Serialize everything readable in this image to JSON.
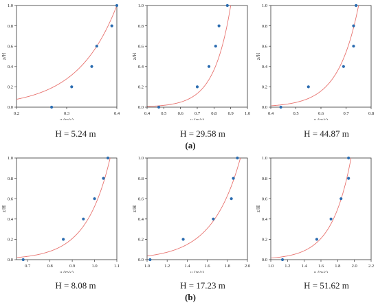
{
  "figure": {
    "row_labels": [
      "(a)",
      "(b)"
    ]
  },
  "chart_data": [
    {
      "type": "scatter",
      "title": "",
      "caption": "H = 5.24 m",
      "xlabel": "u (m/s)",
      "ylabel": "z/H",
      "xlim": [
        0.2,
        0.4
      ],
      "ylim": [
        0,
        1
      ],
      "xticks": [
        "0.2",
        "0.3",
        "0.4"
      ],
      "yticks": [
        "0.0",
        "0.2",
        "0.4",
        "0.6",
        "0.8",
        "1.0"
      ],
      "points": [
        [
          0.27,
          0.0
        ],
        [
          0.31,
          0.2
        ],
        [
          0.35,
          0.4
        ],
        [
          0.36,
          0.6
        ],
        [
          0.39,
          0.8
        ],
        [
          0.4,
          1.0
        ]
      ],
      "fit": {
        "u_ref": 0.4,
        "z0": 0.006
      },
      "colors": {
        "points": "#2b6cb0",
        "fit": "#e8736f"
      }
    },
    {
      "type": "scatter",
      "title": "",
      "caption": "H = 29.58 m",
      "xlabel": "u (m/s)",
      "ylabel": "z/H",
      "xlim": [
        0.4,
        1.0
      ],
      "ylim": [
        0,
        1
      ],
      "xticks": [
        "0.4",
        "0.5",
        "0.6",
        "0.7",
        "0.8",
        "0.9",
        "1.0"
      ],
      "yticks": [
        "0.0",
        "0.2",
        "0.4",
        "0.6",
        "0.8",
        "1.0"
      ],
      "points": [
        [
          0.47,
          0.0
        ],
        [
          0.7,
          0.2
        ],
        [
          0.77,
          0.4
        ],
        [
          0.81,
          0.6
        ],
        [
          0.83,
          0.8
        ],
        [
          0.88,
          1.0
        ]
      ],
      "fit": {
        "u_ref": 0.9,
        "z0": 0.00012
      },
      "colors": {
        "points": "#2b6cb0",
        "fit": "#e8736f"
      }
    },
    {
      "type": "scatter",
      "title": "",
      "caption": "H = 44.87 m",
      "xlabel": "u (m/s)",
      "ylabel": "z/H",
      "xlim": [
        0.4,
        0.8
      ],
      "ylim": [
        0,
        1
      ],
      "xticks": [
        "0.4",
        "0.5",
        "0.6",
        "0.7",
        "0.8"
      ],
      "yticks": [
        "0.0",
        "0.2",
        "0.4",
        "0.6",
        "0.8",
        "1.0"
      ],
      "points": [
        [
          0.44,
          0.0
        ],
        [
          0.55,
          0.2
        ],
        [
          0.69,
          0.4
        ],
        [
          0.73,
          0.6
        ],
        [
          0.73,
          0.8
        ],
        [
          0.74,
          1.0
        ]
      ],
      "fit": {
        "u_ref": 0.75,
        "z0": 0.0001
      },
      "colors": {
        "points": "#2b6cb0",
        "fit": "#e8736f"
      }
    },
    {
      "type": "scatter",
      "title": "",
      "caption": "H = 8.08 m",
      "xlabel": "u (m/s)",
      "ylabel": "z/H",
      "xlim": [
        0.65,
        1.1
      ],
      "ylim": [
        0,
        1
      ],
      "xticks": [
        "0.7",
        "0.8",
        "0.9",
        "1.0",
        "1.1"
      ],
      "yticks": [
        "0.0",
        "0.2",
        "0.4",
        "0.6",
        "0.8",
        "1.0"
      ],
      "points": [
        [
          0.68,
          0.0
        ],
        [
          0.86,
          0.2
        ],
        [
          0.95,
          0.4
        ],
        [
          1.0,
          0.6
        ],
        [
          1.04,
          0.8
        ],
        [
          1.06,
          1.0
        ]
      ],
      "fit": {
        "u_ref": 1.07,
        "z0": 5e-05
      },
      "colors": {
        "points": "#2b6cb0",
        "fit": "#e8736f"
      }
    },
    {
      "type": "scatter",
      "title": "",
      "caption": "H = 17.23 m",
      "xlabel": "u (m/s)",
      "ylabel": "z/H",
      "xlim": [
        1.0,
        2.0
      ],
      "ylim": [
        0,
        1
      ],
      "xticks": [
        "1.0",
        "1.2",
        "1.4",
        "1.6",
        "1.8",
        "2.0"
      ],
      "yticks": [
        "0.0",
        "0.2",
        "0.4",
        "0.6",
        "0.8",
        "1.0"
      ],
      "points": [
        [
          1.03,
          0.0
        ],
        [
          1.36,
          0.2
        ],
        [
          1.66,
          0.4
        ],
        [
          1.84,
          0.6
        ],
        [
          1.86,
          0.8
        ],
        [
          1.9,
          1.0
        ]
      ],
      "fit": {
        "u_ref": 1.93,
        "z0": 0.001
      },
      "colors": {
        "points": "#2b6cb0",
        "fit": "#e8736f"
      }
    },
    {
      "type": "scatter",
      "title": "",
      "caption": "H = 51.62 m",
      "xlabel": "u (m/s)",
      "ylabel": "z/H",
      "xlim": [
        1.0,
        2.2
      ],
      "ylim": [
        0,
        1
      ],
      "xticks": [
        "1.0",
        "1.2",
        "1.4",
        "1.6",
        "1.8",
        "2.0",
        "2.2"
      ],
      "yticks": [
        "0.0",
        "0.2",
        "0.4",
        "0.6",
        "0.8",
        "1.0"
      ],
      "points": [
        [
          1.14,
          0.0
        ],
        [
          1.55,
          0.2
        ],
        [
          1.72,
          0.4
        ],
        [
          1.84,
          0.6
        ],
        [
          1.93,
          0.8
        ],
        [
          1.93,
          1.0
        ]
      ],
      "fit": {
        "u_ref": 1.96,
        "z0": 0.0002
      },
      "colors": {
        "points": "#2b6cb0",
        "fit": "#e8736f"
      }
    }
  ]
}
